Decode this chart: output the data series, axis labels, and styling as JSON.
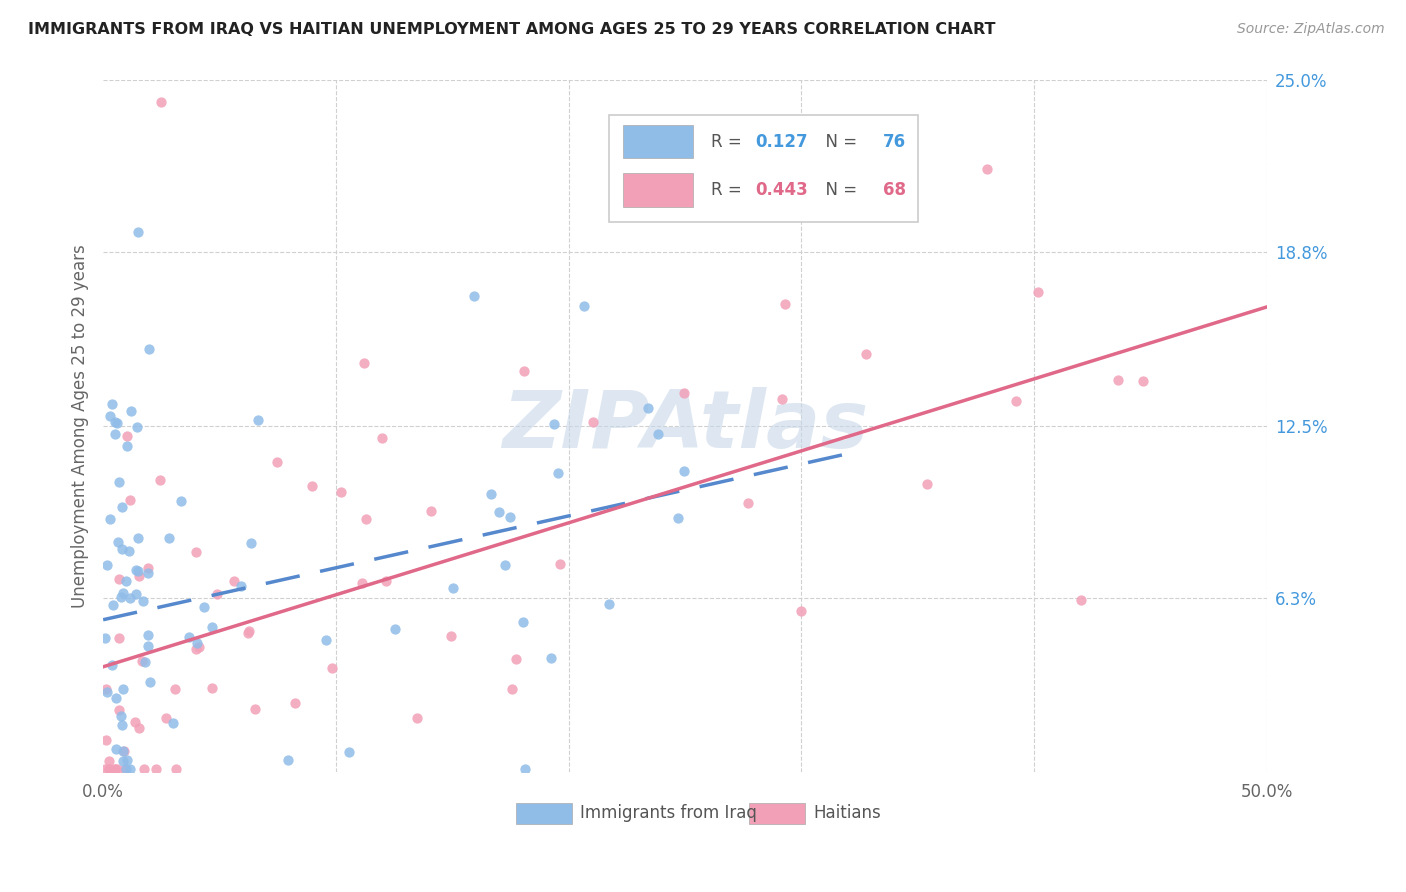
{
  "title": "IMMIGRANTS FROM IRAQ VS HAITIAN UNEMPLOYMENT AMONG AGES 25 TO 29 YEARS CORRELATION CHART",
  "source": "Source: ZipAtlas.com",
  "ylabel": "Unemployment Among Ages 25 to 29 years",
  "xlim": [
    0.0,
    0.5
  ],
  "ylim": [
    0.0,
    0.25
  ],
  "xticks": [
    0.0,
    0.1,
    0.2,
    0.3,
    0.4,
    0.5
  ],
  "xticklabels": [
    "0.0%",
    "",
    "",
    "",
    "",
    "50.0%"
  ],
  "ytick_labels_right": [
    "25.0%",
    "18.8%",
    "12.5%",
    "6.3%"
  ],
  "ytick_values_right": [
    0.25,
    0.188,
    0.125,
    0.063
  ],
  "blue_color": "#90bce8",
  "pink_color": "#f2a0b8",
  "blue_line_color": "#5588cc",
  "pink_line_color": "#e06888",
  "watermark": "ZIPAtlas",
  "iraq_R": 0.127,
  "iraq_N": 76,
  "haiti_R": 0.443,
  "haiti_N": 68,
  "iraq_line_x0": 0.0,
  "iraq_line_x1": 0.32,
  "iraq_line_y0": 0.055,
  "iraq_line_y1": 0.115,
  "haiti_line_x0": 0.0,
  "haiti_line_x1": 0.5,
  "haiti_line_y0": 0.038,
  "haiti_line_y1": 0.168
}
